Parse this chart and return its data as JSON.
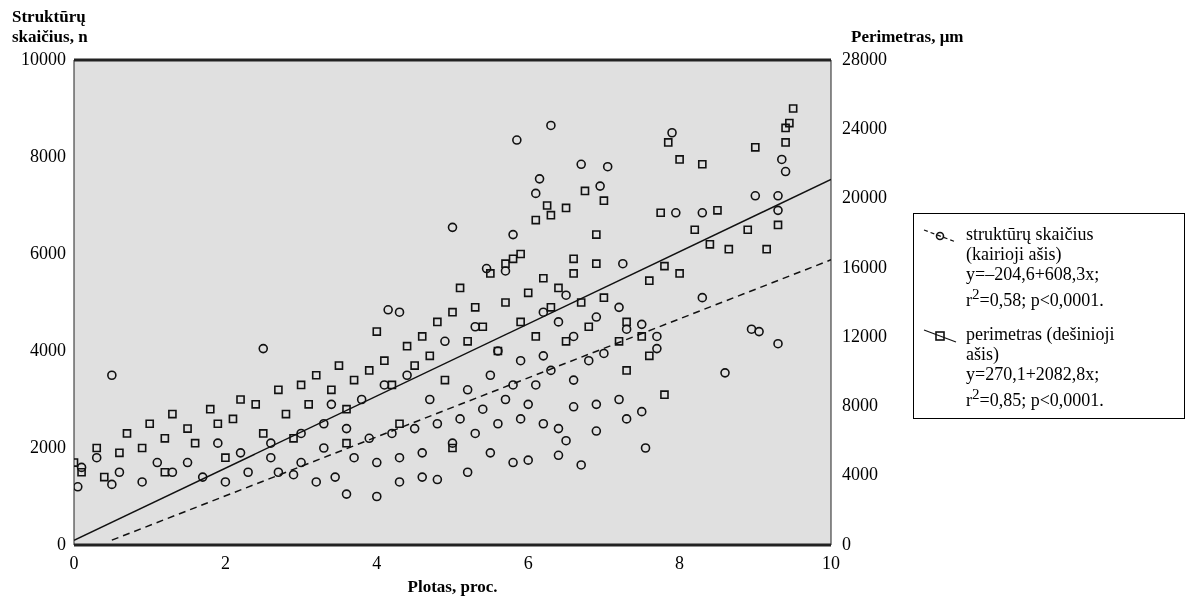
{
  "chart_data": {
    "type": "scatter",
    "xlabel": "Plotas, proc.",
    "ylabel": "Struktūrų skaičius, n",
    "y2label": "Perimetras, μm",
    "xlim": [
      0,
      10
    ],
    "xticks": [
      0,
      2,
      4,
      6,
      8,
      10
    ],
    "ylim": [
      0,
      10000
    ],
    "yticks": [
      0,
      2000,
      4000,
      6000,
      8000,
      10000
    ],
    "y2lim": [
      0,
      28000
    ],
    "y2ticks": [
      0,
      4000,
      8000,
      12000,
      16000,
      20000,
      24000,
      28000
    ],
    "grid": false,
    "legend": "right",
    "annotations": [
      "y=–204,6+608,3x;",
      "r$^{2}$=0,58; p<0,0001.",
      "y=270,1+2082,8x;",
      "r$^{2}$=0,85; p<0,0001."
    ],
    "series": [
      {
        "name": "struktūrų skaičius (kairioji ašis)",
        "type": "scatter",
        "marker": "circle",
        "color": "#111111",
        "x": [
          0.5,
          2.5,
          5.85,
          6.3,
          6.1,
          6.15,
          6.7,
          7.05,
          6.95,
          7.9,
          7.95,
          8.3,
          8.3,
          9.35,
          9.4,
          9.3,
          9.3,
          9.0,
          8.95,
          9.05,
          9.3,
          8.6,
          7.55,
          6.4,
          5.0,
          5.8,
          5.45,
          4.3,
          4.15,
          5.7,
          6.5,
          7.25,
          7.3,
          7.5,
          7.7,
          7.7,
          7.0,
          7.2,
          7.5,
          7.3,
          6.9,
          6.7,
          6.6,
          6.9,
          6.5,
          6.0,
          5.8,
          5.5,
          5.2,
          4.8,
          4.6,
          4.3,
          4.0,
          3.6,
          3.45,
          3.2,
          2.9,
          2.7,
          2.3,
          2.0,
          1.7,
          1.3,
          0.9,
          0.5,
          0.05,
          0.1,
          0.3,
          0.6,
          1.1,
          1.5,
          1.9,
          2.2,
          2.6,
          3.0,
          3.3,
          3.7,
          4.0,
          4.3,
          4.6,
          5.0,
          5.3,
          5.6,
          5.9,
          6.2,
          6.4,
          6.0,
          5.7,
          5.4,
          5.1,
          4.8,
          4.5,
          4.2,
          3.9,
          3.6,
          3.3,
          3.0,
          2.6,
          4.7,
          5.2,
          5.5,
          5.8,
          6.1,
          6.3,
          6.6,
          6.8,
          6.2,
          5.9,
          5.6,
          4.4,
          4.1,
          3.8,
          3.4,
          6.6,
          6.4,
          6.9,
          6.2,
          7.2,
          5.3,
          4.9
        ],
        "values": [
          3500,
          4050,
          8350,
          8650,
          7250,
          7550,
          7850,
          7800,
          7400,
          8500,
          6850,
          6850,
          5100,
          7950,
          7700,
          7200,
          6900,
          7200,
          4450,
          4400,
          4150,
          3550,
          2000,
          1850,
          6550,
          6400,
          5700,
          4800,
          4850,
          5650,
          5150,
          5800,
          4450,
          4550,
          4050,
          4300,
          3950,
          3000,
          2750,
          2600,
          2350,
          1650,
          2850,
          2900,
          2150,
          1750,
          1700,
          1900,
          1500,
          1350,
          1400,
          1300,
          1000,
          1050,
          1400,
          1300,
          1450,
          1500,
          1500,
          1300,
          1400,
          1500,
          1300,
          1250,
          1200,
          1600,
          1800,
          1500,
          1700,
          1700,
          2100,
          1900,
          1800,
          1700,
          2000,
          1800,
          1700,
          1800,
          1900,
          2100,
          2300,
          2500,
          2600,
          2500,
          2400,
          2900,
          3000,
          2800,
          2600,
          2500,
          2400,
          2300,
          2200,
          2400,
          2500,
          2300,
          2100,
          3000,
          3200,
          3500,
          3300,
          3300,
          3600,
          3400,
          3800,
          3900,
          3800,
          4000,
          3500,
          3300,
          3000,
          2900,
          4300,
          4600,
          4700,
          4800,
          4900,
          4500,
          4200
        ]
      },
      {
        "name": "perimetras (dešinioji ašis)",
        "type": "scatter",
        "marker": "square",
        "axis": "y2",
        "color": "#111111",
        "x": [
          0,
          0.1,
          0.3,
          0.4,
          0.6,
          0.7,
          0.9,
          1.0,
          1.2,
          1.3,
          1.5,
          1.6,
          1.8,
          1.9,
          2.1,
          2.2,
          2.4,
          2.5,
          2.7,
          2.8,
          3.0,
          3.1,
          3.2,
          3.4,
          3.5,
          3.6,
          3.7,
          3.9,
          4.0,
          4.1,
          4.2,
          4.4,
          4.5,
          4.6,
          4.7,
          4.8,
          4.9,
          5.0,
          5.1,
          5.2,
          5.3,
          5.4,
          5.5,
          5.6,
          5.7,
          5.8,
          5.9,
          6.0,
          6.1,
          6.2,
          6.3,
          6.4,
          6.5,
          6.6,
          6.7,
          6.8,
          6.9,
          7.0,
          7.2,
          7.3,
          7.5,
          6.1,
          6.3,
          6.25,
          6.5,
          6.75,
          7.0,
          5.7,
          5.9,
          6.6,
          6.9,
          7.6,
          7.8,
          7.75,
          7.85,
          8.0,
          8.3,
          8.0,
          8.2,
          8.4,
          8.5,
          8.65,
          8.9,
          9.0,
          9.3,
          9.4,
          9.4,
          9.45,
          9.5,
          9.15,
          7.8,
          7.6,
          7.3,
          5.0,
          4.3,
          3.6,
          2.9,
          2.0,
          1.2
        ],
        "values": [
          4760,
          4200,
          5600,
          3920,
          5320,
          6440,
          5600,
          7000,
          6160,
          7560,
          6720,
          5880,
          7840,
          7000,
          7280,
          8400,
          8120,
          6440,
          8960,
          7560,
          9240,
          8120,
          9800,
          8960,
          10360,
          7840,
          9520,
          10080,
          12320,
          10640,
          9240,
          11480,
          10360,
          12040,
          10920,
          12880,
          9520,
          13440,
          14840,
          11760,
          13720,
          12600,
          15680,
          11200,
          14000,
          16520,
          12880,
          14560,
          12040,
          15400,
          13720,
          14840,
          11760,
          15680,
          14000,
          12600,
          16240,
          14280,
          11760,
          12880,
          12040,
          18760,
          19040,
          19600,
          19460,
          20440,
          19880,
          16240,
          16800,
          16520,
          17920,
          15260,
          16100,
          19180,
          23240,
          22260,
          21980,
          15680,
          18200,
          17360,
          19320,
          17080,
          18200,
          22960,
          18480,
          23240,
          24080,
          24360,
          25200,
          17080,
          8680,
          10920,
          10080,
          5600,
          7000,
          5880,
          6160,
          5040,
          4200
        ]
      },
      {
        "type": "line",
        "line_style": "dashed",
        "marker": "none",
        "color": "#111111",
        "x": [
          0.5,
          10
        ],
        "values": [
          100,
          5880
        ]
      },
      {
        "type": "line",
        "line_style": "solid",
        "marker": "none",
        "axis": "y2",
        "color": "#111111",
        "x": [
          0,
          10
        ],
        "values": [
          270,
          21100
        ]
      }
    ]
  }
}
